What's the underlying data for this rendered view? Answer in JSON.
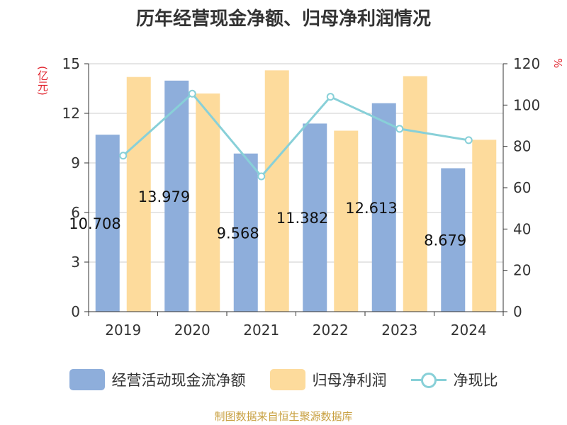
{
  "chart_data": {
    "type": "bar",
    "title": "历年经营现金净额、归母净利润情况",
    "categories": [
      "2019",
      "2020",
      "2021",
      "2022",
      "2023",
      "2024"
    ],
    "series": [
      {
        "name": "经营活动现金流净额",
        "type": "bar",
        "axis": "left",
        "color": "#8eaedb",
        "values": [
          10.708,
          13.979,
          9.568,
          11.382,
          12.613,
          8.679
        ],
        "labels": [
          "10.708",
          "13.979",
          "9.568",
          "11.382",
          "12.613",
          "8.679"
        ]
      },
      {
        "name": "归母净利润",
        "type": "bar",
        "axis": "left",
        "color": "#fddb9c",
        "values": [
          14.2,
          13.2,
          14.6,
          10.95,
          14.25,
          10.4
        ]
      },
      {
        "name": "净现比",
        "type": "line",
        "axis": "right",
        "color": "#88d0d8",
        "values": [
          75.5,
          105.5,
          65.5,
          104,
          88.5,
          83
        ]
      }
    ],
    "y_left": {
      "label": "(亿元)",
      "ylim": [
        0,
        15
      ],
      "ticks": [
        "0",
        "3",
        "6",
        "9",
        "12",
        "15"
      ]
    },
    "y_right": {
      "label": "%",
      "ylim": [
        0,
        120
      ],
      "ticks": [
        "0",
        "20",
        "40",
        "60",
        "80",
        "100",
        "120"
      ]
    },
    "grid": true,
    "legend_position": "bottom"
  },
  "source": "制图数据来自恒生聚源数据库"
}
